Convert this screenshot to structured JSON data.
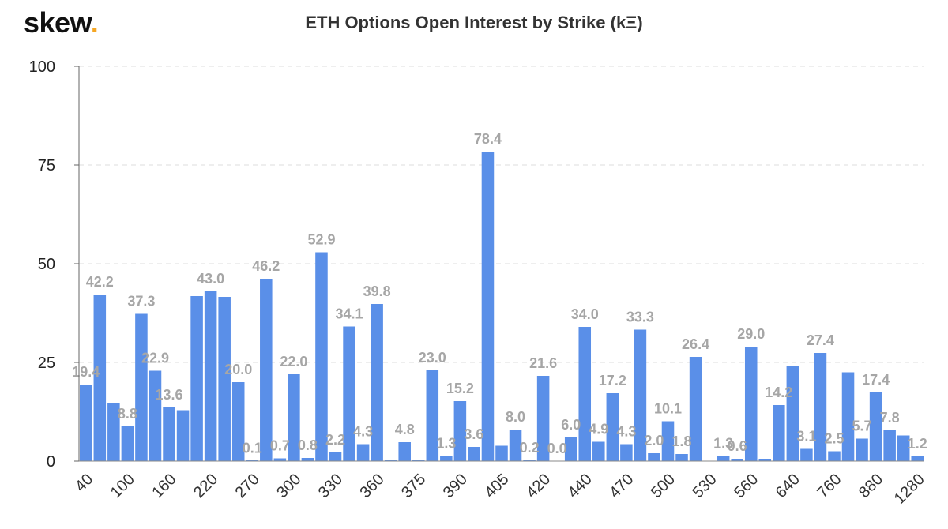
{
  "header": {
    "logo_text": "skew",
    "logo_dot": ".",
    "accent_color": "#f5a623"
  },
  "chart_data": {
    "type": "bar",
    "title": "ETH Options Open Interest by Strike (kΞ)",
    "xlabel": "",
    "ylabel": "",
    "ylim": [
      0,
      100
    ],
    "yticks": [
      0,
      25,
      50,
      75,
      100
    ],
    "grid": true,
    "bar_color": "#5a8fe8",
    "x_tick_labels": [
      "40",
      "100",
      "160",
      "220",
      "270",
      "300",
      "330",
      "360",
      "375",
      "390",
      "405",
      "420",
      "440",
      "470",
      "500",
      "530",
      "560",
      "640",
      "760",
      "880",
      "1280"
    ],
    "values": [
      19.4,
      42.2,
      14.6,
      8.8,
      37.3,
      22.9,
      13.6,
      12.9,
      41.8,
      43.0,
      41.6,
      20.0,
      0.1,
      46.2,
      0.7,
      22.0,
      0.8,
      52.9,
      2.2,
      34.1,
      4.3,
      39.8,
      0.2,
      4.8,
      0.2,
      23.0,
      1.3,
      15.2,
      3.6,
      78.4,
      3.9,
      8.0,
      0.2,
      21.6,
      0.0,
      6.0,
      34.0,
      4.9,
      17.2,
      4.3,
      33.3,
      2.0,
      10.1,
      1.8,
      26.4,
      0.0,
      1.3,
      0.6,
      29.0,
      0.6,
      14.2,
      24.2,
      3.1,
      27.4,
      2.5,
      22.5,
      5.7,
      17.4,
      7.8,
      6.5,
      1.2
    ],
    "data_labels": [
      "19.4",
      "42.2",
      null,
      "8.8",
      "37.3",
      "22.9",
      "13.6",
      null,
      null,
      "43.0",
      null,
      "20.0",
      "0.1",
      "46.2",
      "0.7",
      "22.0",
      "0.8",
      "52.9",
      "2.2",
      "34.1",
      "4.3",
      "39.8",
      null,
      "4.8",
      null,
      "23.0",
      "1.3",
      "15.2",
      "3.6",
      "78.4",
      null,
      "8.0",
      "0.2",
      "21.6",
      "0.0",
      "6.0",
      "34.0",
      "4.9",
      "17.2",
      "4.3",
      "33.3",
      "2.0",
      "10.1",
      "1.8",
      "26.4",
      null,
      "1.3",
      "0.6",
      "29.0",
      null,
      "14.2",
      null,
      "3.1",
      "27.4",
      "2.5",
      null,
      "5.7",
      "17.4",
      "7.8",
      null,
      "1.2"
    ]
  }
}
